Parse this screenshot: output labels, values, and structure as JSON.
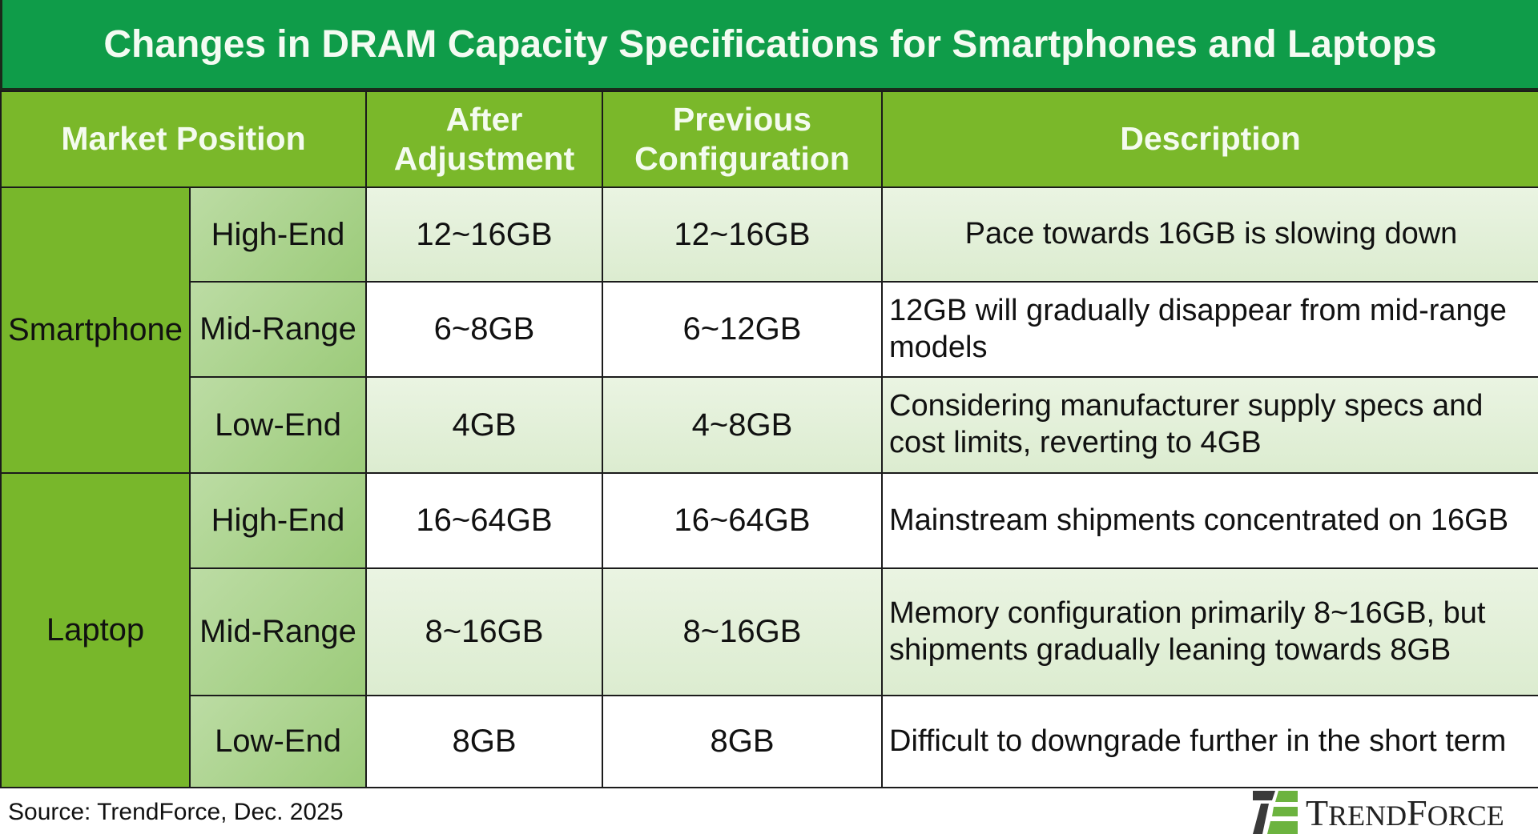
{
  "title": "Changes in DRAM Capacity Specifications for Smartphones and Laptops",
  "headers": {
    "market_position": "Market Position",
    "after_adjustment_line1": "After",
    "after_adjustment_line2": "Adjustment",
    "previous_configuration_line1": "Previous",
    "previous_configuration_line2": "Configuration",
    "description": "Description"
  },
  "groups": [
    {
      "category": "Smartphone",
      "rows": [
        {
          "position": "High-End",
          "after": "12~16GB",
          "previous": "12~16GB",
          "description": "Pace towards 16GB is slowing down"
        },
        {
          "position": "Mid-Range",
          "after": "6~8GB",
          "previous": "6~12GB",
          "description": "12GB will gradually disappear from mid-range models"
        },
        {
          "position": "Low-End",
          "after": "4GB",
          "previous": "4~8GB",
          "description": "Considering manufacturer supply specs and cost limits, reverting to 4GB"
        }
      ]
    },
    {
      "category": "Laptop",
      "rows": [
        {
          "position": "High-End",
          "after": "16~64GB",
          "previous": "16~64GB",
          "description": "Mainstream shipments concentrated on 16GB"
        },
        {
          "position": "Mid-Range",
          "after": "8~16GB",
          "previous": "8~16GB",
          "description": "Memory configuration primarily 8~16GB, but shipments gradually leaning towards 8GB"
        },
        {
          "position": "Low-End",
          "after": "8GB",
          "previous": "8GB",
          "description": "Difficult to downgrade further in the short term"
        }
      ]
    }
  ],
  "footer": {
    "source": "Source: TrendForce, Dec. 2025",
    "logo_text": "TRENDFORCE"
  },
  "colors": {
    "title_band": "#0f9c49",
    "header": "#7ab82a",
    "category_cell": "#78b72b",
    "row_light": "#e3f0d8",
    "brand_green": "#6cb33f"
  }
}
